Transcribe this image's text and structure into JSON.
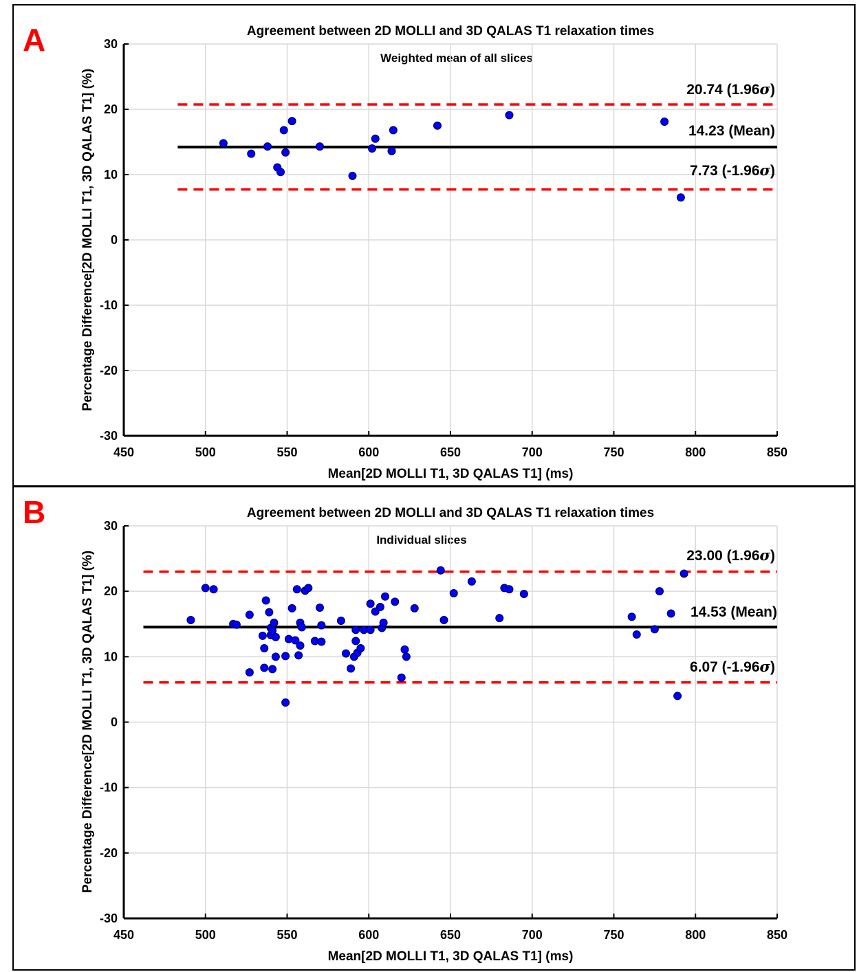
{
  "panels": [
    {
      "letter": "A",
      "title": "Agreement between 2D MOLLI and 3D QALAS T1 relaxation times",
      "subtitle": "Weighted mean of all slices",
      "upper_label": "20.74 (1.96",
      "mean_label": "14.23 (Mean)",
      "lower_label": "7.73 (-1.96"
    },
    {
      "letter": "B",
      "title": "Agreement between 2D MOLLI and 3D QALAS T1 relaxation times",
      "subtitle": "Individual slices",
      "upper_label": "23.00 (1.96",
      "mean_label": "14.53 (Mean)",
      "lower_label": "6.07 (-1.96"
    }
  ],
  "sigma_symbol": "σ",
  "close_paren": ")",
  "colors": {
    "letter": "#ff0000",
    "point_fill": "#0000ff",
    "point_stroke": "#00003c",
    "limit_line": "#ff0000",
    "mean_line": "#000000",
    "grid": "#d9d9d9"
  },
  "chart_data": [
    {
      "type": "scatter",
      "title": "Agreement between 2D MOLLI and 3D QALAS T1 relaxation times",
      "subtitle": "Weighted mean of all slices",
      "xlabel": "Mean[2D MOLLI T1, 3D QALAS T1] (ms)",
      "ylabel": "Percentage Difference[2D MOLLI T1, 3D QALAS T1] (%)",
      "xlim": [
        450,
        850
      ],
      "ylim": [
        -30,
        30
      ],
      "xticks": [
        450,
        500,
        550,
        600,
        650,
        700,
        750,
        800,
        850
      ],
      "yticks": [
        -30,
        -20,
        -10,
        0,
        10,
        20,
        30
      ],
      "grid": true,
      "mean": 14.23,
      "upper_loa": 20.74,
      "lower_loa": 7.73,
      "line_x_range": [
        483,
        850
      ],
      "points": [
        [
          511,
          14.8
        ],
        [
          528,
          13.2
        ],
        [
          538,
          14.3
        ],
        [
          544,
          11.1
        ],
        [
          546,
          10.4
        ],
        [
          548,
          16.8
        ],
        [
          549,
          13.4
        ],
        [
          553,
          18.2
        ],
        [
          570,
          14.3
        ],
        [
          590,
          9.8
        ],
        [
          602,
          14.0
        ],
        [
          604,
          15.5
        ],
        [
          614,
          13.6
        ],
        [
          615,
          16.8
        ],
        [
          642,
          17.5
        ],
        [
          686,
          19.1
        ],
        [
          781,
          18.1
        ],
        [
          791,
          6.5
        ]
      ]
    },
    {
      "type": "scatter",
      "title": "Agreement between 2D MOLLI and 3D QALAS T1 relaxation times",
      "subtitle": "Individual slices",
      "xlabel": "Mean[2D MOLLI T1, 3D QALAS T1] (ms)",
      "ylabel": "Percentage Difference[2D MOLLI T1, 3D QALAS T1] (%)",
      "xlim": [
        450,
        850
      ],
      "ylim": [
        -30,
        30
      ],
      "xticks": [
        450,
        500,
        550,
        600,
        650,
        700,
        750,
        800,
        850
      ],
      "yticks": [
        -30,
        -20,
        -10,
        0,
        10,
        20,
        30
      ],
      "grid": true,
      "mean": 14.53,
      "upper_loa": 23.0,
      "lower_loa": 6.07,
      "line_x_range": [
        462,
        850
      ],
      "points": [
        [
          491,
          15.6
        ],
        [
          500,
          20.5
        ],
        [
          505,
          20.3
        ],
        [
          517,
          15.0
        ],
        [
          519,
          14.9
        ],
        [
          527,
          16.4
        ],
        [
          527,
          7.6
        ],
        [
          535,
          13.2
        ],
        [
          536,
          11.3
        ],
        [
          536,
          8.3
        ],
        [
          537,
          18.6
        ],
        [
          539,
          16.8
        ],
        [
          540,
          14.4
        ],
        [
          540,
          13.3
        ],
        [
          541,
          14.0
        ],
        [
          541,
          8.1
        ],
        [
          542,
          15.2
        ],
        [
          543,
          10.0
        ],
        [
          543,
          13.0
        ],
        [
          549,
          10.1
        ],
        [
          549,
          3.0
        ],
        [
          551,
          12.7
        ],
        [
          553,
          17.4
        ],
        [
          555,
          12.5
        ],
        [
          556,
          20.3
        ],
        [
          557,
          10.2
        ],
        [
          558,
          15.2
        ],
        [
          558,
          11.7
        ],
        [
          559,
          14.5
        ],
        [
          561,
          20.1
        ],
        [
          563,
          20.5
        ],
        [
          567,
          12.4
        ],
        [
          570,
          17.5
        ],
        [
          571,
          12.3
        ],
        [
          571,
          14.8
        ],
        [
          583,
          15.5
        ],
        [
          586,
          10.5
        ],
        [
          589,
          8.2
        ],
        [
          591,
          10.0
        ],
        [
          592,
          14.1
        ],
        [
          592,
          12.4
        ],
        [
          593,
          10.6
        ],
        [
          595,
          11.3
        ],
        [
          597,
          14.1
        ],
        [
          601,
          14.1
        ],
        [
          601,
          18.1
        ],
        [
          604,
          16.9
        ],
        [
          607,
          17.6
        ],
        [
          608,
          14.4
        ],
        [
          609,
          15.2
        ],
        [
          610,
          19.2
        ],
        [
          616,
          18.4
        ],
        [
          620,
          6.8
        ],
        [
          622,
          11.1
        ],
        [
          623,
          10.0
        ],
        [
          628,
          17.4
        ],
        [
          644,
          23.2
        ],
        [
          646,
          15.6
        ],
        [
          652,
          19.7
        ],
        [
          663,
          21.5
        ],
        [
          680,
          15.9
        ],
        [
          683,
          20.5
        ],
        [
          686,
          20.3
        ],
        [
          695,
          19.6
        ],
        [
          761,
          16.1
        ],
        [
          764,
          13.4
        ],
        [
          775,
          14.2
        ],
        [
          778,
          20.0
        ],
        [
          785,
          16.6
        ],
        [
          789,
          4.0
        ],
        [
          793,
          22.7
        ]
      ]
    }
  ]
}
